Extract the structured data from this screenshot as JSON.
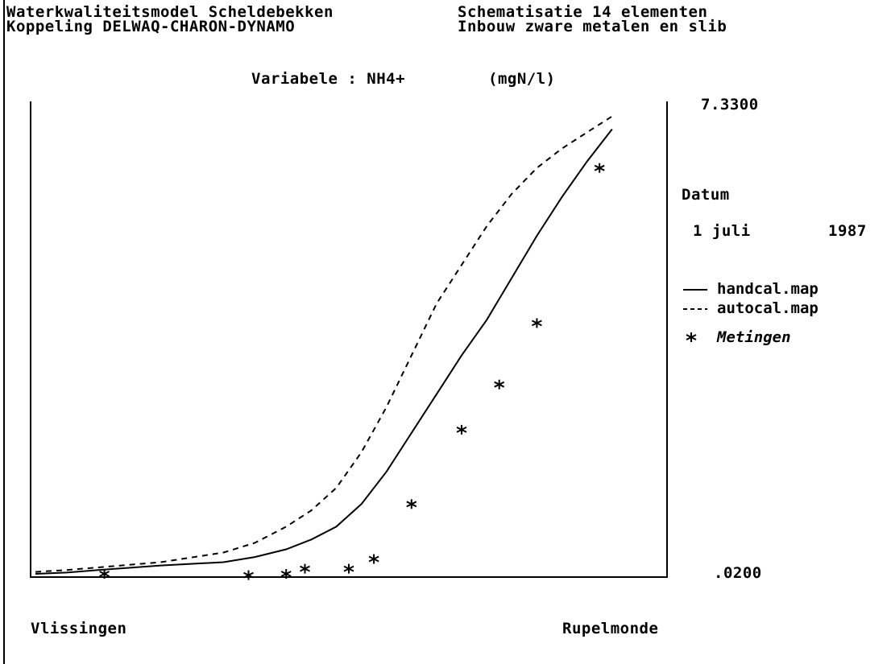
{
  "header": {
    "title_line1": "Waterkwaliteitsmodel Scheldebekken",
    "title_line2": "Koppeling DELWAQ-CHARON-DYNAMO",
    "schema_line1": "Schematisatie 14 elementen",
    "schema_line2": "Inbouw zware metalen en slib"
  },
  "variable": {
    "label": "Variabele : NH4+",
    "unit": "(mgN/l)"
  },
  "axis": {
    "ymax_label": "7.3300",
    "ymin_label": ".0200",
    "x_left_label": "Vlissingen",
    "x_right_label": "Rupelmonde"
  },
  "date": {
    "heading": "Datum",
    "day_month": "1 juli",
    "year": "1987"
  },
  "legend": {
    "items": [
      {
        "label": "handcal.map",
        "style": "solid"
      },
      {
        "label": "autocal.map",
        "style": "dashed"
      },
      {
        "label": "Metingen",
        "style": "marker"
      }
    ]
  },
  "colors": {
    "ink": "#000000",
    "background": "#ffffff"
  },
  "chart_data": {
    "type": "line",
    "title": "Variabele : NH4+",
    "ylabel": "(mgN/l)",
    "ylim": [
      0.02,
      7.33
    ],
    "xlim": [
      0,
      1
    ],
    "x_labels": [
      "Vlissingen",
      "Rupelmonde"
    ],
    "grid": false,
    "legend_position": "right",
    "series": [
      {
        "name": "handcal.map",
        "style": "solid",
        "x": [
          0.0,
          0.05,
          0.1,
          0.2,
          0.3,
          0.35,
          0.4,
          0.44,
          0.48,
          0.52,
          0.56,
          0.6,
          0.64,
          0.68,
          0.72,
          0.76,
          0.8,
          0.84,
          0.88,
          0.92
        ],
        "y": [
          0.02,
          0.04,
          0.08,
          0.15,
          0.2,
          0.28,
          0.4,
          0.55,
          0.75,
          1.1,
          1.6,
          2.2,
          2.8,
          3.4,
          3.95,
          4.6,
          5.25,
          5.85,
          6.4,
          6.9
        ]
      },
      {
        "name": "autocal.map",
        "style": "dashed",
        "x": [
          0.0,
          0.05,
          0.1,
          0.2,
          0.3,
          0.35,
          0.4,
          0.44,
          0.48,
          0.52,
          0.56,
          0.6,
          0.64,
          0.68,
          0.72,
          0.76,
          0.8,
          0.84,
          0.88,
          0.92
        ],
        "y": [
          0.05,
          0.08,
          0.12,
          0.2,
          0.35,
          0.5,
          0.75,
          1.0,
          1.35,
          1.9,
          2.6,
          3.4,
          4.2,
          4.8,
          5.4,
          5.9,
          6.3,
          6.6,
          6.85,
          7.1
        ]
      },
      {
        "name": "Metingen",
        "style": "marker",
        "x": [
          0.11,
          0.34,
          0.4,
          0.43,
          0.5,
          0.54,
          0.6,
          0.68,
          0.74,
          0.8,
          0.9
        ],
        "y": [
          0.02,
          0.0,
          0.02,
          0.1,
          0.1,
          0.25,
          1.1,
          2.25,
          2.95,
          3.9,
          6.3
        ]
      }
    ]
  }
}
